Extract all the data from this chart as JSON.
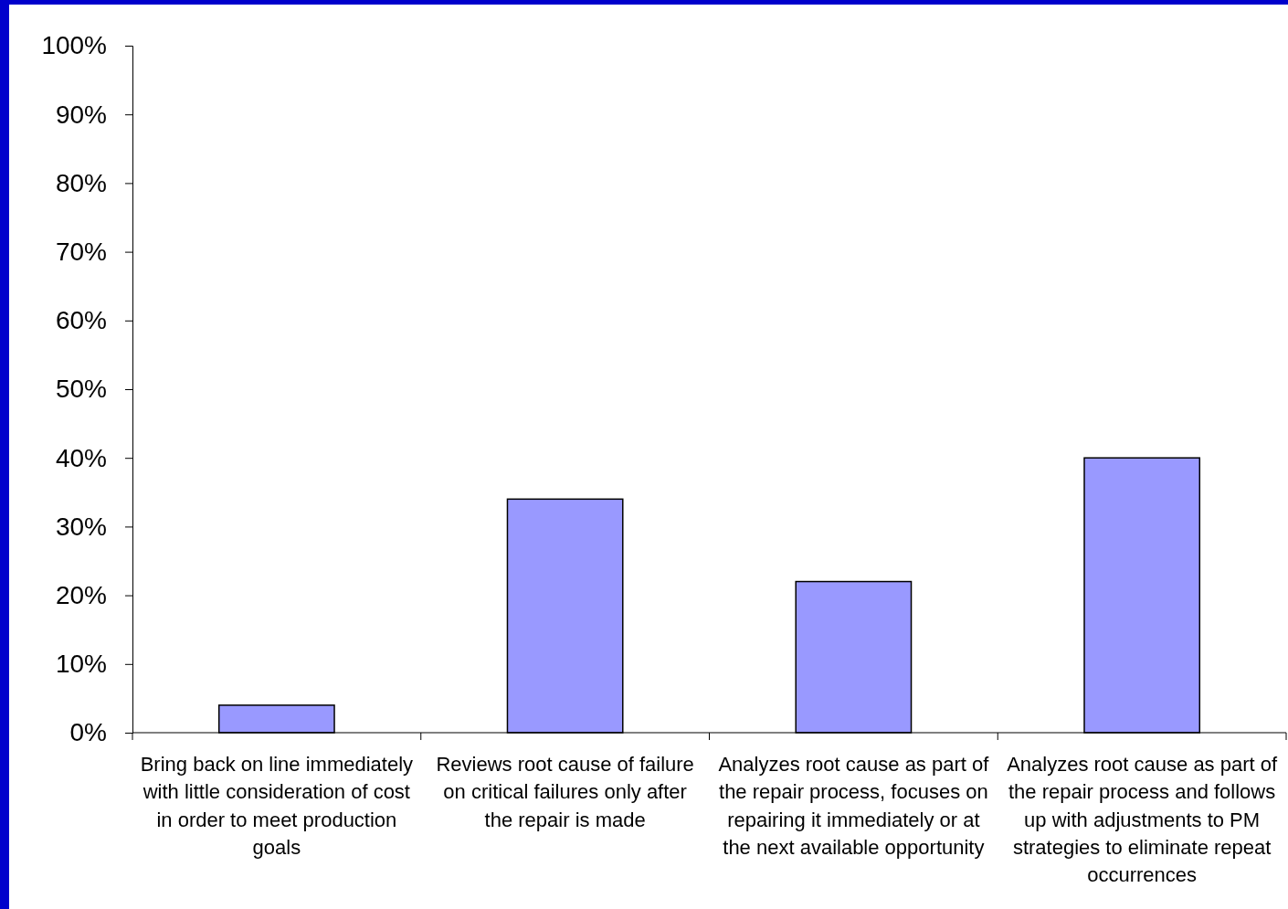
{
  "chart_data": {
    "type": "bar",
    "categories": [
      "Bring back on line immediately with little consideration of cost in order to meet production goals",
      "Reviews root cause of failure on critical failures only after the repair is made",
      "Analyzes root cause as part of the repair process, focuses on repairing it immediately or at the next available opportunity",
      "Analyzes root cause as part of the repair process and follows up with adjustments to PM strategies to eliminate repeat occurrences"
    ],
    "values": [
      4,
      34,
      22,
      40
    ],
    "color": "#9999ff",
    "ylim": [
      0,
      100
    ],
    "yticks": [
      {
        "value": 0,
        "label": "0%"
      },
      {
        "value": 10,
        "label": "10%"
      },
      {
        "value": 20,
        "label": "20%"
      },
      {
        "value": 30,
        "label": "30%"
      },
      {
        "value": 40,
        "label": "40%"
      },
      {
        "value": 50,
        "label": "50%"
      },
      {
        "value": 60,
        "label": "60%"
      },
      {
        "value": 70,
        "label": "70%"
      },
      {
        "value": 80,
        "label": "80%"
      },
      {
        "value": 90,
        "label": "90%"
      },
      {
        "value": 100,
        "label": "100%"
      }
    ],
    "grid": false
  }
}
